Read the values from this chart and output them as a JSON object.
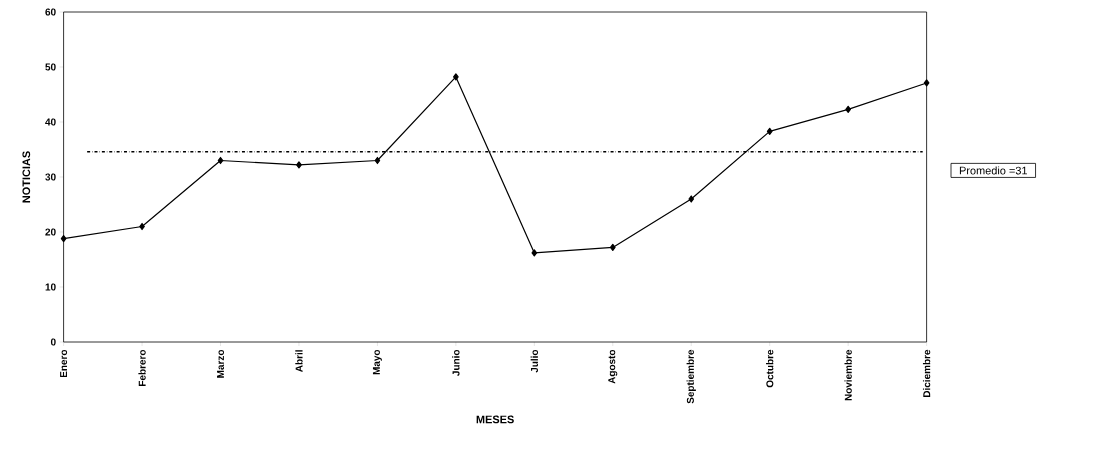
{
  "chart_data": {
    "type": "line",
    "xlabel": "MESES",
    "ylabel": "NOTICIAS",
    "categories": [
      "Enero",
      "Febrero",
      "Marzo",
      "Abril",
      "Mayo",
      "Junio",
      "Julio",
      "Agosto",
      "Septiembre",
      "Octubre",
      "Noviembre",
      "Diciembre"
    ],
    "series": [
      {
        "color": "#000000",
        "values": [
          18.8,
          21,
          33,
          32.2,
          33,
          48.2,
          16.2,
          17.2,
          26,
          38.3,
          42.3,
          47.1
        ]
      }
    ],
    "ylim": [
      0,
      60
    ],
    "yticks": [
      0,
      10,
      20,
      30,
      40,
      50,
      60
    ],
    "ref_lines": [
      {
        "axis": "y",
        "value": 34.6,
        "color": "#000000",
        "line_style": "dashdot"
      }
    ],
    "annotations": [
      "Promedio =31"
    ],
    "marker": "diamond",
    "line_style": "solid",
    "grid": false
  }
}
